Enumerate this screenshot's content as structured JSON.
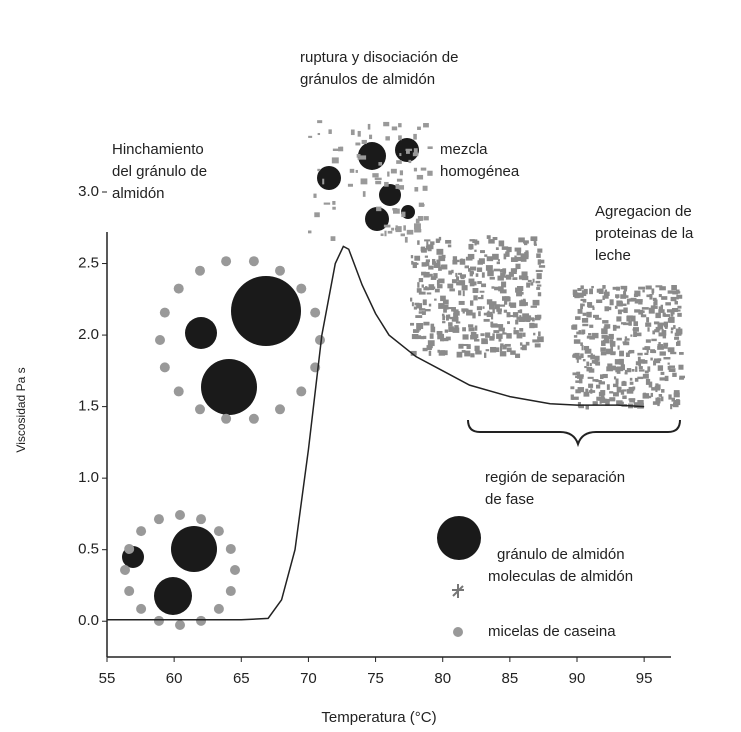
{
  "chart_data": {
    "type": "line",
    "xlabel": "Temperatura (°C)",
    "ylabel": "Viscosidad Pa s",
    "xlim": [
      55,
      97
    ],
    "ylim": [
      -0.25,
      3.0
    ],
    "xticks": [
      55,
      60,
      65,
      70,
      75,
      80,
      85,
      90,
      95
    ],
    "yticks": [
      {
        "value": 0,
        "label": "0.0"
      },
      0.5,
      {
        "value": 1,
        "label": "1.0"
      },
      1.5,
      {
        "value": 2,
        "label": "2.0"
      },
      2.5,
      {
        "value": 3,
        "label": "3.0"
      }
    ],
    "series": [
      {
        "color": "#222222",
        "x": [
          55,
          60,
          65,
          67,
          68,
          69,
          70,
          71,
          72,
          72.6,
          73,
          74,
          75,
          76,
          78,
          80,
          82,
          85,
          88,
          90,
          93,
          95
        ],
        "values": [
          0.01,
          0.01,
          0.01,
          0.02,
          0.15,
          0.5,
          1.2,
          2.0,
          2.5,
          2.62,
          2.6,
          2.35,
          2.15,
          2.0,
          1.85,
          1.75,
          1.65,
          1.57,
          1.52,
          1.51,
          1.51,
          1.5
        ]
      }
    ],
    "annotations": [
      "ruptura y disociación de",
      "gránulos de almidón",
      "Hinchamiento",
      "del  gránulo de",
      "almidón",
      "mezcla",
      "homogénea",
      "Agregacion de",
      "proteinas de la",
      "leche",
      "región de separación",
      "de fase",
      "gránulo de almidón",
      "moleculas de almidón",
      "micelas de caseina"
    ]
  }
}
